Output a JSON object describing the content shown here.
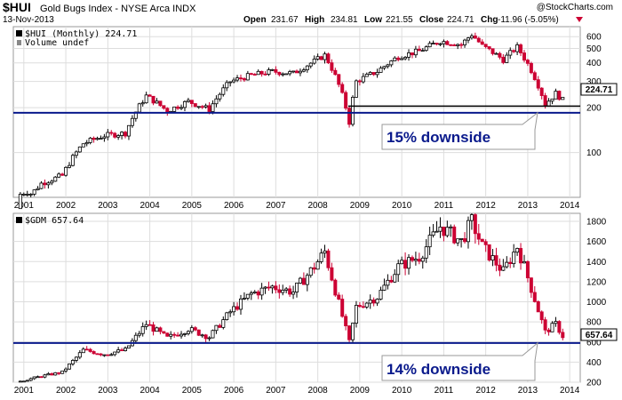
{
  "header": {
    "title_symbol": "$HUI",
    "title_name": "Gold Bugs Index - NYSE Arca INDX",
    "date": "13-Nov-2013",
    "source": "@StockCharts.com",
    "ohlc": {
      "open_label": "Open",
      "open": "231.67",
      "high_label": "High",
      "high": "234.81",
      "low_label": "Low",
      "low": "221.55",
      "close_label": "Close",
      "close": "224.71",
      "chg_label": "Chg",
      "chg": "-11.96 (-5.05%)"
    }
  },
  "colors": {
    "up": "#000000",
    "down": "#cc0033",
    "support_line": "#0a1a8c",
    "callout_text": "#0a1a8c",
    "chg_text": "#cc0033",
    "grid": "#dddddd"
  },
  "chart_data": [
    {
      "type": "candlestick",
      "id": "hui",
      "legend": "$HUI (Monthly) 224.71",
      "volume_label": "Volume undef",
      "scale": "log",
      "ylim": [
        50,
        700
      ],
      "yticks": [
        100,
        200,
        300,
        400,
        500,
        600
      ],
      "x_labels": [
        "2001",
        "2002",
        "2003",
        "2004",
        "2005",
        "2006",
        "2007",
        "2008",
        "2009",
        "2010",
        "2011",
        "2012",
        "2013",
        "2014"
      ],
      "last_value": "224.71",
      "support_level": 185,
      "recent_low_level": 205,
      "annotation": "15% downside",
      "series": [
        {
          "x": "2000-12",
          "close": 42
        },
        {
          "x": "2001-06",
          "close": 62
        },
        {
          "x": "2001-12",
          "close": 70
        },
        {
          "x": "2002-06",
          "close": 115
        },
        {
          "x": "2002-12",
          "close": 130
        },
        {
          "x": "2003-06",
          "close": 135
        },
        {
          "x": "2003-12",
          "close": 240
        },
        {
          "x": "2004-06",
          "close": 190
        },
        {
          "x": "2004-12",
          "close": 220
        },
        {
          "x": "2005-06",
          "close": 195
        },
        {
          "x": "2005-12",
          "close": 300
        },
        {
          "x": "2006-06",
          "close": 330
        },
        {
          "x": "2006-12",
          "close": 350
        },
        {
          "x": "2007-06",
          "close": 340
        },
        {
          "x": "2007-12",
          "close": 410
        },
        {
          "x": "2008-03",
          "close": 450
        },
        {
          "x": "2008-10",
          "close": 160
        },
        {
          "x": "2008-12",
          "close": 300
        },
        {
          "x": "2009-06",
          "close": 350
        },
        {
          "x": "2009-12",
          "close": 440
        },
        {
          "x": "2010-06",
          "close": 480
        },
        {
          "x": "2010-12",
          "close": 560
        },
        {
          "x": "2011-06",
          "close": 530
        },
        {
          "x": "2011-09",
          "close": 620
        },
        {
          "x": "2011-12",
          "close": 520
        },
        {
          "x": "2012-06",
          "close": 420
        },
        {
          "x": "2012-10",
          "close": 510
        },
        {
          "x": "2012-12",
          "close": 430
        },
        {
          "x": "2013-06",
          "close": 210
        },
        {
          "x": "2013-09",
          "close": 250
        },
        {
          "x": "2013-11",
          "close": 224.71
        }
      ]
    },
    {
      "type": "candlestick",
      "id": "gdm",
      "legend": "$GDM 657.64",
      "scale": "linear",
      "ylim": [
        200,
        1880
      ],
      "yticks": [
        200,
        400,
        600,
        800,
        1000,
        1200,
        1400,
        1600,
        1800
      ],
      "x_labels": [
        "2001",
        "2002",
        "2003",
        "2004",
        "2005",
        "2006",
        "2007",
        "2008",
        "2009",
        "2010",
        "2011",
        "2012",
        "2013",
        "2014"
      ],
      "last_value": "657.64",
      "support_level": 590,
      "annotation": "14% downside",
      "series": [
        {
          "x": "2000-12",
          "close": 210
        },
        {
          "x": "2001-06",
          "close": 260
        },
        {
          "x": "2001-12",
          "close": 300
        },
        {
          "x": "2002-06",
          "close": 520
        },
        {
          "x": "2002-12",
          "close": 480
        },
        {
          "x": "2003-06",
          "close": 520
        },
        {
          "x": "2003-12",
          "close": 780
        },
        {
          "x": "2004-06",
          "close": 640
        },
        {
          "x": "2004-12",
          "close": 730
        },
        {
          "x": "2005-06",
          "close": 650
        },
        {
          "x": "2005-12",
          "close": 900
        },
        {
          "x": "2006-06",
          "close": 1080
        },
        {
          "x": "2006-12",
          "close": 1150
        },
        {
          "x": "2007-06",
          "close": 1100
        },
        {
          "x": "2007-12",
          "close": 1350
        },
        {
          "x": "2008-03",
          "close": 1500
        },
        {
          "x": "2008-10",
          "close": 600
        },
        {
          "x": "2008-12",
          "close": 950
        },
        {
          "x": "2009-06",
          "close": 1050
        },
        {
          "x": "2009-12",
          "close": 1350
        },
        {
          "x": "2010-06",
          "close": 1450
        },
        {
          "x": "2010-12",
          "close": 1750
        },
        {
          "x": "2011-06",
          "close": 1600
        },
        {
          "x": "2011-09",
          "close": 1800
        },
        {
          "x": "2011-12",
          "close": 1550
        },
        {
          "x": "2012-06",
          "close": 1300
        },
        {
          "x": "2012-10",
          "close": 1550
        },
        {
          "x": "2012-12",
          "close": 1350
        },
        {
          "x": "2013-06",
          "close": 700
        },
        {
          "x": "2013-09",
          "close": 780
        },
        {
          "x": "2013-11",
          "close": 657.64
        }
      ]
    }
  ]
}
